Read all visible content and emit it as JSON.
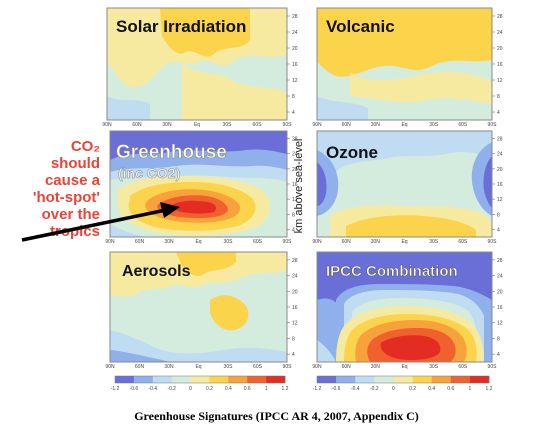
{
  "chart_data": {
    "type": "heatmap",
    "caption": "Greenhouse Signatures (IPCC AR 4, 2007, Appendix C)",
    "ylabel": "km above sea-level",
    "y_ticks": [
      "28",
      "24",
      "20",
      "16",
      "12",
      "8",
      "4"
    ],
    "x_ticks": [
      "90N",
      "60N",
      "30N",
      "Eq",
      "30S",
      "60S",
      "90S"
    ],
    "colorbar_ticks": [
      "-1.2",
      "-0.6",
      "-0.4",
      "-0.2",
      "0",
      "0.2",
      "0.4",
      "0.6",
      "1",
      "1.2"
    ],
    "colors": {
      "deep_blue": "#6a6fd8",
      "blue": "#8fb0ea",
      "light_blue": "#bfdcf2",
      "pale": "#d4ecdd",
      "light_yellow": "#f6eaa1",
      "yellow": "#fbd44b",
      "orange": "#f8a23b",
      "red_orange": "#f0612e",
      "red": "#e32d22",
      "annotation_red": "#e8443a"
    },
    "panels": [
      {
        "title": "Solar Irradiation"
      },
      {
        "title": "Volcanic"
      },
      {
        "title": "Greenhouse",
        "subtitle": "(inc CO2)"
      },
      {
        "title": "Ozone"
      },
      {
        "title": "Aerosols"
      },
      {
        "title": "IPCC Combination"
      }
    ],
    "annotation": {
      "lines": [
        "CO₂",
        "should",
        "cause a",
        "'hot-spot'",
        "over the",
        "tropics"
      ]
    }
  }
}
